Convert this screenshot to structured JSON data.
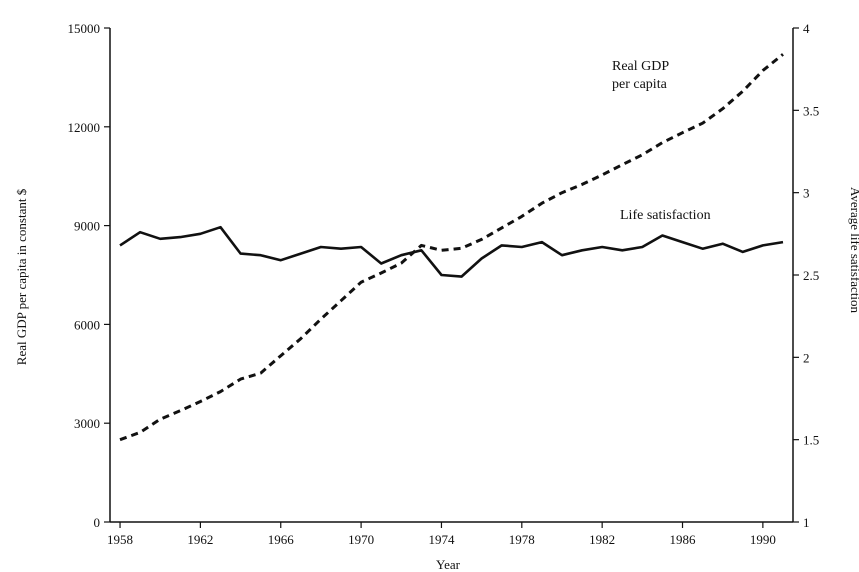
{
  "chart_data": {
    "type": "line",
    "title": "",
    "xlabel": "Year",
    "ylabel_left": "Real GDP per capita in constant $",
    "ylabel_right": "Average life satisfaction",
    "xlim": [
      1957.5,
      1991.5
    ],
    "ylim_left": [
      0,
      15000
    ],
    "ylim_right": [
      1,
      4
    ],
    "x_ticks": [
      1958,
      1962,
      1966,
      1970,
      1974,
      1978,
      1982,
      1986,
      1990
    ],
    "y_ticks_left": [
      0,
      3000,
      6000,
      9000,
      12000,
      15000
    ],
    "y_ticks_right": [
      1,
      1.5,
      2,
      2.5,
      3,
      3.5,
      4
    ],
    "y_ticks_right_labels": [
      "1",
      "1.5",
      "2",
      "2.5",
      "3",
      "3.5",
      "4"
    ],
    "grid": false,
    "legend": "none (series labelled directly on plot)",
    "series": [
      {
        "name": "Real GDP per capita",
        "axis": "left",
        "style": "dashed",
        "x": [
          1958,
          1959,
          1960,
          1961,
          1962,
          1963,
          1964,
          1965,
          1966,
          1967,
          1968,
          1969,
          1970,
          1971,
          1972,
          1973,
          1974,
          1975,
          1976,
          1977,
          1978,
          1979,
          1980,
          1981,
          1982,
          1983,
          1984,
          1985,
          1986,
          1987,
          1988,
          1989,
          1990,
          1991
        ],
        "values": [
          2500,
          2720,
          3120,
          3380,
          3660,
          3960,
          4340,
          4520,
          5050,
          5570,
          6160,
          6720,
          7280,
          7560,
          7860,
          8400,
          8250,
          8310,
          8580,
          8930,
          9280,
          9680,
          10000,
          10250,
          10540,
          10850,
          11150,
          11520,
          11820,
          12110,
          12550,
          13080,
          13710,
          14200
        ]
      },
      {
        "name": "Life satisfaction",
        "axis": "right",
        "style": "solid",
        "x": [
          1958,
          1959,
          1960,
          1961,
          1962,
          1963,
          1964,
          1965,
          1966,
          1967,
          1968,
          1969,
          1970,
          1971,
          1972,
          1973,
          1974,
          1975,
          1976,
          1977,
          1978,
          1979,
          1980,
          1981,
          1982,
          1983,
          1984,
          1985,
          1986,
          1987,
          1988,
          1989,
          1990,
          1991
        ],
        "values": [
          2.68,
          2.76,
          2.72,
          2.73,
          2.75,
          2.79,
          2.63,
          2.62,
          2.59,
          2.63,
          2.67,
          2.66,
          2.67,
          2.57,
          2.62,
          2.65,
          2.5,
          2.49,
          2.6,
          2.68,
          2.67,
          2.7,
          2.62,
          2.65,
          2.67,
          2.65,
          2.67,
          2.74,
          2.7,
          2.66,
          2.69,
          2.64,
          2.68,
          2.7
        ]
      }
    ],
    "annotations": [
      {
        "label_line1": "Real GDP",
        "label_line2": "per capita"
      },
      {
        "label": "Life satisfaction"
      }
    ]
  },
  "colors": {
    "line": "#111111",
    "axis": "#111111",
    "background": "#ffffff"
  }
}
